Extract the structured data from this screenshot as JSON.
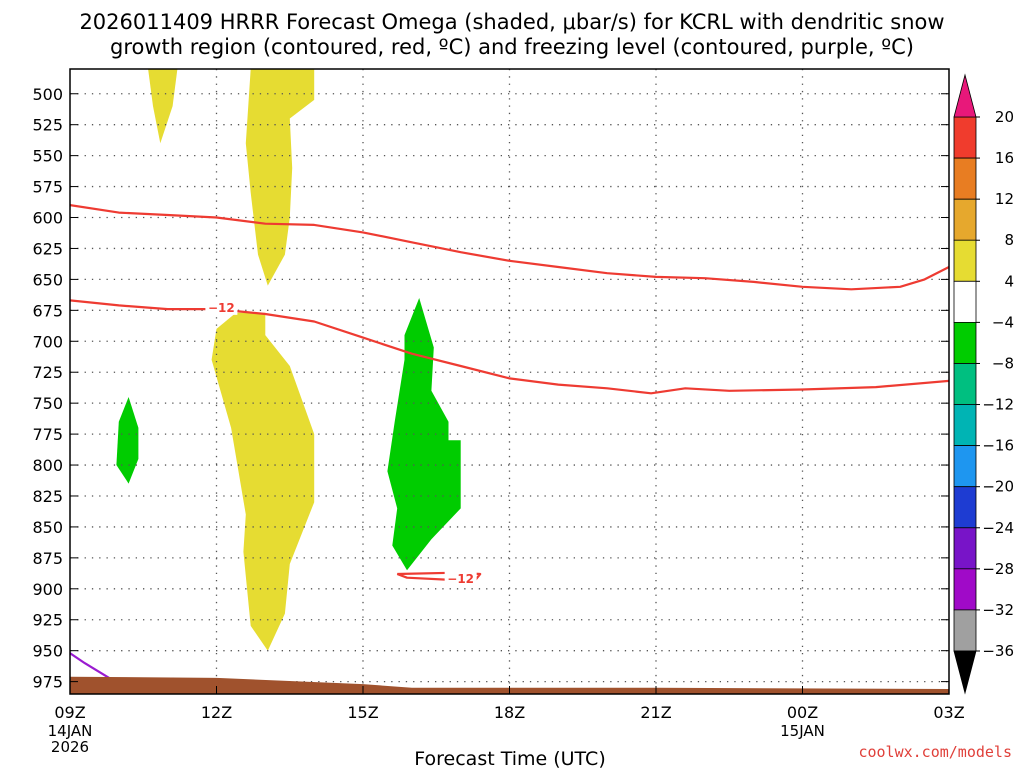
{
  "title": {
    "line1": "2026011409 HRRR Forecast Omega (shaded, μbar/s) for KCRL with dendritic snow",
    "line2": "growth region (contoured, red, ºC) and freezing level (contoured, purple, ºC)"
  },
  "credit": "coolwx.com/models",
  "colors": {
    "dgz_contour": "#ee3b32",
    "freezing_contour": "#9a1bd0",
    "terrain": "#a0522d",
    "omega_rising": "#00cc00",
    "omega_sinking": "#e6dc32"
  },
  "chart_data": {
    "type": "time-height cross section",
    "title": "2026011409 HRRR Forecast Omega (shaded, μbar/s) for KCRL with dendritic snow growth region (contoured, red, ºC) and freezing level (contoured, purple, ºC)",
    "xlabel": "Forecast Time (UTC)",
    "ylabel": "",
    "xlim": [
      0,
      18
    ],
    "ylim": [
      985,
      480
    ],
    "y_reversed": true,
    "x_ticks": [
      {
        "hour": 0,
        "label": "09Z",
        "date": [
          "14JAN",
          "2026"
        ]
      },
      {
        "hour": 3,
        "label": "12Z",
        "date": []
      },
      {
        "hour": 6,
        "label": "15Z",
        "date": []
      },
      {
        "hour": 9,
        "label": "18Z",
        "date": []
      },
      {
        "hour": 12,
        "label": "21Z",
        "date": []
      },
      {
        "hour": 15,
        "label": "00Z",
        "date": [
          "15JAN"
        ]
      },
      {
        "hour": 18,
        "label": "03Z",
        "date": []
      }
    ],
    "y_ticks": [
      500,
      525,
      550,
      575,
      600,
      625,
      650,
      675,
      700,
      725,
      750,
      775,
      800,
      825,
      850,
      875,
      900,
      925,
      950,
      975
    ],
    "colorbar": {
      "label_values": [
        "20",
        "16",
        "12",
        "8",
        "4",
        "−4",
        "−8",
        "−12",
        "−16",
        "−20",
        "−24",
        "−28",
        "−32",
        "−36"
      ],
      "top_arrow_color": "#e8187a",
      "bottom_arrow_color": "#000000",
      "bands": [
        {
          "from": 16,
          "to": 20,
          "color": "#f03c2d"
        },
        {
          "from": 12,
          "to": 16,
          "color": "#e87d22"
        },
        {
          "from": 8,
          "to": 12,
          "color": "#e6a82d"
        },
        {
          "from": 4,
          "to": 8,
          "color": "#e6dc32"
        },
        {
          "from": -4,
          "to": 4,
          "color": "#ffffff"
        },
        {
          "from": -8,
          "to": -4,
          "color": "#00cc00"
        },
        {
          "from": -12,
          "to": -8,
          "color": "#00bf80"
        },
        {
          "from": -16,
          "to": -12,
          "color": "#00b4b4"
        },
        {
          "from": -20,
          "to": -16,
          "color": "#1e96f0"
        },
        {
          "from": -24,
          "to": -20,
          "color": "#1e3cd2"
        },
        {
          "from": -28,
          "to": -24,
          "color": "#7814c8"
        },
        {
          "from": -32,
          "to": -28,
          "color": "#a00ac8"
        },
        {
          "from": -36,
          "to": -32,
          "color": "#a0a0a0"
        }
      ]
    },
    "omega_regions": [
      {
        "name": "upper-sinking-a",
        "band": "4 to 8",
        "color": "#e6dc32",
        "points": [
          [
            1.6,
            480
          ],
          [
            2.2,
            480
          ],
          [
            2.1,
            510
          ],
          [
            1.85,
            540
          ],
          [
            1.7,
            510
          ]
        ]
      },
      {
        "name": "upper-sinking-b",
        "band": "4 to 8",
        "color": "#e6dc32",
        "points": [
          [
            3.7,
            480
          ],
          [
            5.0,
            480
          ],
          [
            5.0,
            505
          ],
          [
            4.5,
            520
          ],
          [
            4.55,
            560
          ],
          [
            4.5,
            600
          ],
          [
            4.4,
            630
          ],
          [
            4.05,
            655
          ],
          [
            3.85,
            630
          ],
          [
            3.7,
            580
          ],
          [
            3.6,
            540
          ]
        ]
      },
      {
        "name": "lower-sinking",
        "band": "4 to 8",
        "color": "#e6dc32",
        "points": [
          [
            3.0,
            690
          ],
          [
            3.4,
            677
          ],
          [
            4.0,
            677
          ],
          [
            4.0,
            695
          ],
          [
            4.5,
            720
          ],
          [
            5.0,
            775
          ],
          [
            5.0,
            830
          ],
          [
            4.5,
            880
          ],
          [
            4.4,
            920
          ],
          [
            4.05,
            950
          ],
          [
            3.7,
            930
          ],
          [
            3.55,
            870
          ],
          [
            3.6,
            840
          ],
          [
            3.3,
            770
          ],
          [
            2.9,
            715
          ]
        ]
      },
      {
        "name": "rising-small",
        "band": "-8 to -4",
        "color": "#00cc00",
        "points": [
          [
            1.0,
            765
          ],
          [
            1.2,
            745
          ],
          [
            1.4,
            770
          ],
          [
            1.4,
            795
          ],
          [
            1.2,
            815
          ],
          [
            0.95,
            800
          ]
        ]
      },
      {
        "name": "rising-main",
        "band": "-8 to -4",
        "color": "#00cc00",
        "points": [
          [
            6.85,
            695
          ],
          [
            7.15,
            665
          ],
          [
            7.45,
            705
          ],
          [
            7.4,
            740
          ],
          [
            7.75,
            765
          ],
          [
            7.75,
            780
          ],
          [
            8.0,
            780
          ],
          [
            8.0,
            835
          ],
          [
            7.4,
            860
          ],
          [
            6.9,
            885
          ],
          [
            6.6,
            865
          ],
          [
            6.7,
            835
          ],
          [
            6.5,
            805
          ],
          [
            6.65,
            765
          ],
          [
            6.85,
            715
          ]
        ]
      }
    ],
    "dgz_contours": [
      {
        "name": "upper",
        "points": [
          [
            0,
            590
          ],
          [
            1,
            596
          ],
          [
            2,
            598
          ],
          [
            3,
            600
          ],
          [
            4,
            605
          ],
          [
            5,
            606
          ],
          [
            6,
            612
          ],
          [
            7,
            620
          ],
          [
            8,
            628
          ],
          [
            9,
            635
          ],
          [
            10,
            640
          ],
          [
            11,
            645
          ],
          [
            12,
            648
          ],
          [
            13,
            649
          ],
          [
            14,
            652
          ],
          [
            15,
            656
          ],
          [
            16,
            658
          ],
          [
            17,
            656
          ],
          [
            17.5,
            650
          ],
          [
            18,
            640
          ]
        ]
      },
      {
        "name": "lower",
        "label": "−12",
        "label_at_hour": 3.1,
        "label_at_p": 673,
        "points": [
          [
            0,
            667
          ],
          [
            1,
            671
          ],
          [
            2,
            674
          ],
          [
            3,
            674
          ],
          [
            4,
            678
          ],
          [
            5,
            684
          ],
          [
            6,
            697
          ],
          [
            7,
            710
          ],
          [
            8,
            720
          ],
          [
            9,
            730
          ],
          [
            10,
            735
          ],
          [
            11,
            738
          ],
          [
            11.9,
            742
          ],
          [
            12.6,
            738
          ],
          [
            13.5,
            740
          ],
          [
            15,
            739
          ],
          [
            16.5,
            737
          ],
          [
            18,
            732
          ]
        ]
      },
      {
        "name": "small-pocket",
        "label": "−12",
        "label_at_hour": 8.0,
        "label_at_p": 892,
        "points": [
          [
            6.7,
            888
          ],
          [
            7.9,
            887
          ],
          [
            8.4,
            888
          ],
          [
            8.3,
            893
          ],
          [
            7.9,
            893
          ],
          [
            6.9,
            891
          ],
          [
            6.7,
            888
          ]
        ]
      }
    ],
    "freezing_contours": [
      {
        "name": "freezing-level",
        "points": [
          [
            0,
            952
          ],
          [
            0.3,
            960
          ],
          [
            0.8,
            972
          ]
        ]
      }
    ],
    "terrain_surface": [
      [
        0,
        971
      ],
      [
        3,
        972
      ],
      [
        6,
        977
      ],
      [
        7,
        980
      ],
      [
        12,
        980
      ],
      [
        18,
        981
      ]
    ]
  }
}
